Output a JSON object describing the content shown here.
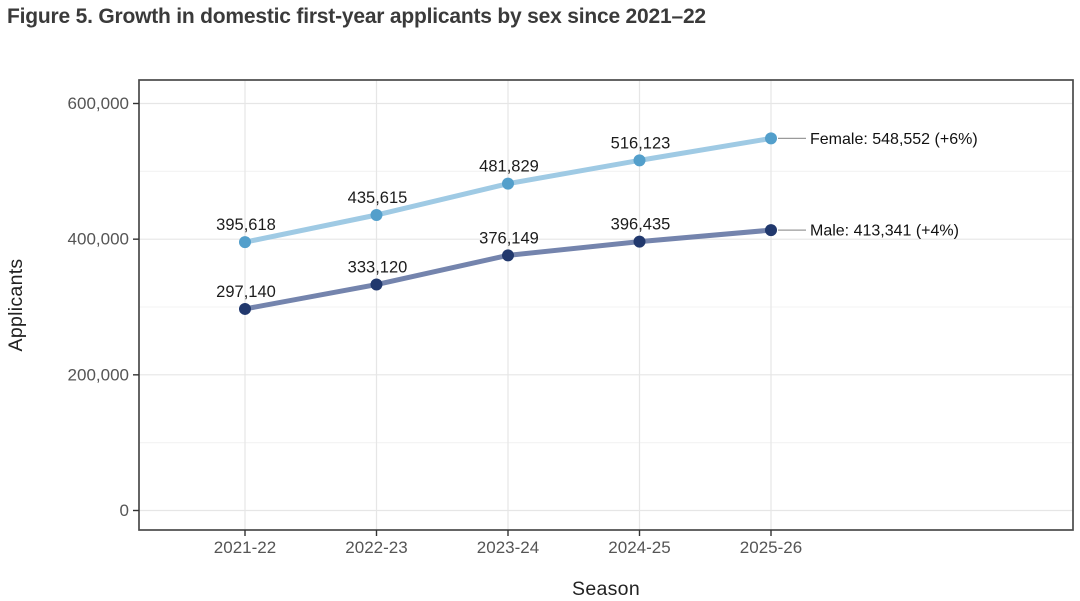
{
  "figure": {
    "title": "Figure 5. Growth in domestic first-year applicants by sex since 2021–22"
  },
  "chart_data": {
    "type": "line",
    "title": "Figure 5. Growth in domestic first-year applicants by sex since 2021–22",
    "xlabel": "Season",
    "ylabel": "Applicants",
    "categories": [
      "2021-22",
      "2022-23",
      "2023-24",
      "2024-25",
      "2025-26"
    ],
    "series": [
      {
        "name": "Female",
        "values": [
          395618,
          435615,
          481829,
          516123,
          548552
        ],
        "value_labels": [
          "395,618",
          "435,615",
          "481,829",
          "516,123",
          "548,552"
        ],
        "growth": "+6%",
        "end_label": "Female: 548,552 (+6%)",
        "line_color": "#9fcae4",
        "point_color": "#539fcb"
      },
      {
        "name": "Male",
        "values": [
          297140,
          333120,
          376149,
          396435,
          413341
        ],
        "value_labels": [
          "297,140",
          "333,120",
          "376,149",
          "396,435",
          "413,341"
        ],
        "growth": "+4%",
        "end_label": "Male: 413,341 (+4%)",
        "line_color": "#7484ad",
        "point_color": "#21386d"
      }
    ],
    "y_ticks": [
      {
        "value": 0,
        "label": "0"
      },
      {
        "value": 200000,
        "label": "200,000"
      },
      {
        "value": 400000,
        "label": "400,000"
      },
      {
        "value": 600000,
        "label": "600,000"
      }
    ],
    "y_minor_ticks": [
      100000,
      300000,
      500000
    ],
    "ylim": [
      -28000,
      634000
    ],
    "grid": true,
    "legend_position": "end-of-line-labels",
    "style": {
      "grid_major": "#e6e6e6",
      "grid_minor": "#f3f3f3",
      "panel_border": "#4a4a4a",
      "tick_color": "#333333",
      "connector_color": "#9a9a9a",
      "background": "#ffffff"
    }
  }
}
